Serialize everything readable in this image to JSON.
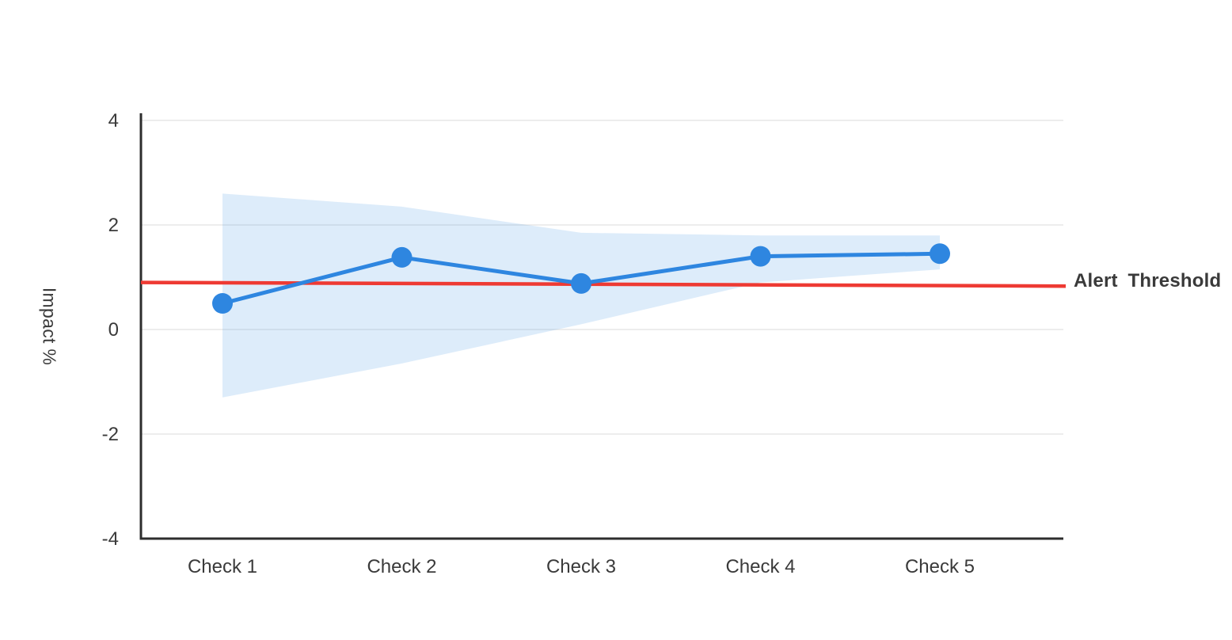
{
  "page": {
    "background": "#ffffff"
  },
  "chart_data": {
    "type": "line",
    "title": "",
    "categories": [
      "Check 1",
      "Check 2",
      "Check 3",
      "Check 4",
      "Check 5"
    ],
    "series": [
      {
        "name": "Impact",
        "values": [
          0.5,
          1.38,
          0.88,
          1.4,
          1.45
        ],
        "marker": "circle"
      }
    ],
    "confidence_band": {
      "upper": [
        2.6,
        2.35,
        1.85,
        1.8,
        1.8
      ],
      "lower": [
        -1.3,
        -0.65,
        0.1,
        0.9,
        1.15
      ]
    },
    "threshold": {
      "label": "Alert Threshold",
      "value_start": 0.9,
      "value_end": 0.83
    },
    "xlabel": "",
    "ylabel": "Impact %",
    "yticks": [
      4,
      2,
      0,
      -2,
      -4
    ],
    "ylim": [
      -4,
      4.4
    ],
    "grid": "horizontal",
    "legend_position": "none",
    "colors": {
      "series_blue": "#2e86e0",
      "band_fill": "rgba(46,134,224,0.16)",
      "threshold_red": "#ee3a33",
      "axis": "#2d2d2d",
      "gridline": "#e7e7e7",
      "text": "#3a3a3a"
    }
  }
}
